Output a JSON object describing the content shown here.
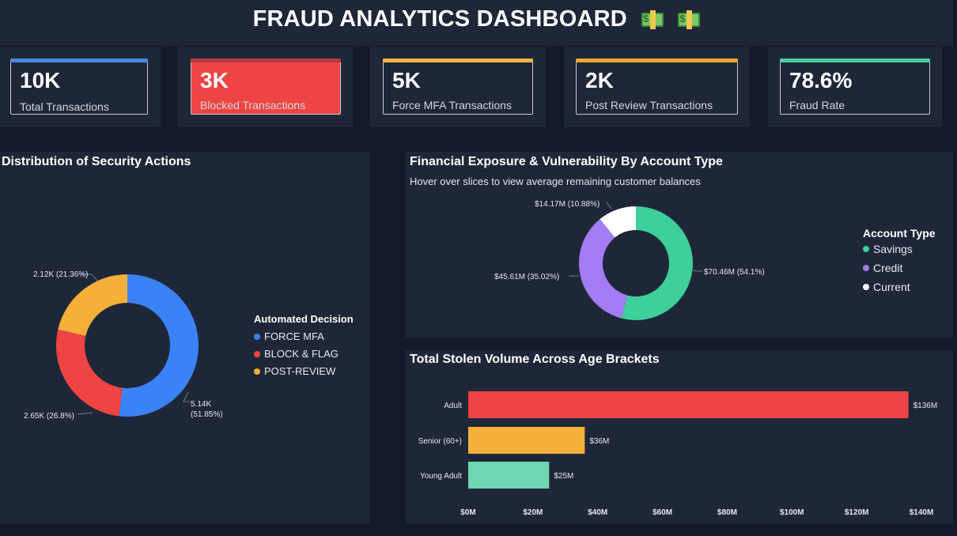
{
  "header": {
    "title": "FRAUD ANALYTICS DASHBOARD"
  },
  "kpis": [
    {
      "value": "10K",
      "label": "Total Transactions",
      "accent": "#4a86e8",
      "fill": ""
    },
    {
      "value": "3K",
      "label": "Blocked Transactions",
      "accent": "#b83a3a",
      "fill": "#ef4444"
    },
    {
      "value": "5K",
      "label": "Force MFA Transactions",
      "accent": "#f5b342",
      "fill": ""
    },
    {
      "value": "2K",
      "label": "Post Review Transactions",
      "accent": "#f0a833",
      "fill": ""
    },
    {
      "value": "78.6%",
      "label": "Fraud Rate",
      "accent": "#4ccfa0",
      "fill": ""
    }
  ],
  "security": {
    "title": "Distribution of Security Actions",
    "legend_title": "Automated Decision",
    "legend": [
      {
        "label": "FORCE MFA",
        "color": "#3b82f6"
      },
      {
        "label": "BLOCK & FLAG",
        "color": "#ef4444"
      },
      {
        "label": "POST-REVIEW",
        "color": "#f5b03a"
      }
    ],
    "labels": {
      "force_mfa_value": "5.14K",
      "force_mfa_pct": "(51.85%)",
      "block_flag": "2.65K (26.8%)",
      "post_review": "2.12K (21.36%)"
    }
  },
  "exposure": {
    "title": "Financial Exposure & Vulnerability By Account Type",
    "subtitle": "Hover over slices to view average remaining customer balances",
    "legend_title": "Account Type",
    "legend": [
      {
        "label": "Savings",
        "color": "#3ecf9b"
      },
      {
        "label": "Credit",
        "color": "#a47cf5"
      },
      {
        "label": "Current",
        "color": "#ffffff"
      }
    ],
    "labels": {
      "savings": "$70.46M (54.1%)",
      "credit": "$45.61M (35.02%)",
      "current": "$14.17M (10.88%)"
    }
  },
  "stolen": {
    "title": "Total Stolen Volume Across Age Brackets"
  },
  "chart_data": [
    {
      "type": "pie",
      "title": "Distribution of Security Actions",
      "categories": [
        "FORCE MFA",
        "BLOCK & FLAG",
        "POST-REVIEW"
      ],
      "values": [
        5140,
        2650,
        2120
      ],
      "percentages": [
        51.85,
        26.8,
        21.36
      ],
      "colors": [
        "#3b82f6",
        "#ef4444",
        "#f5b03a"
      ],
      "legend_title": "Automated Decision"
    },
    {
      "type": "pie",
      "title": "Financial Exposure & Vulnerability By Account Type",
      "categories": [
        "Savings",
        "Credit",
        "Current"
      ],
      "values": [
        70.46,
        45.61,
        14.17
      ],
      "percentages": [
        54.1,
        35.02,
        10.88
      ],
      "colors": [
        "#3ecf9b",
        "#a47cf5",
        "#ffffff"
      ],
      "legend_title": "Account Type"
    },
    {
      "type": "bar",
      "orientation": "horizontal",
      "title": "Total Stolen Volume Across Age Brackets",
      "categories": [
        "Adult",
        "Senior (60+)",
        "Young Adult"
      ],
      "values": [
        136,
        36,
        25
      ],
      "value_labels": [
        "$136M",
        "$36M",
        "$25M"
      ],
      "colors": [
        "#ef4444",
        "#f5b03a",
        "#6fd6b2"
      ],
      "xlim": [
        0,
        140
      ],
      "xticks": [
        "$0M",
        "$20M",
        "$40M",
        "$60M",
        "$80M",
        "$100M",
        "$120M",
        "$140M"
      ]
    }
  ]
}
